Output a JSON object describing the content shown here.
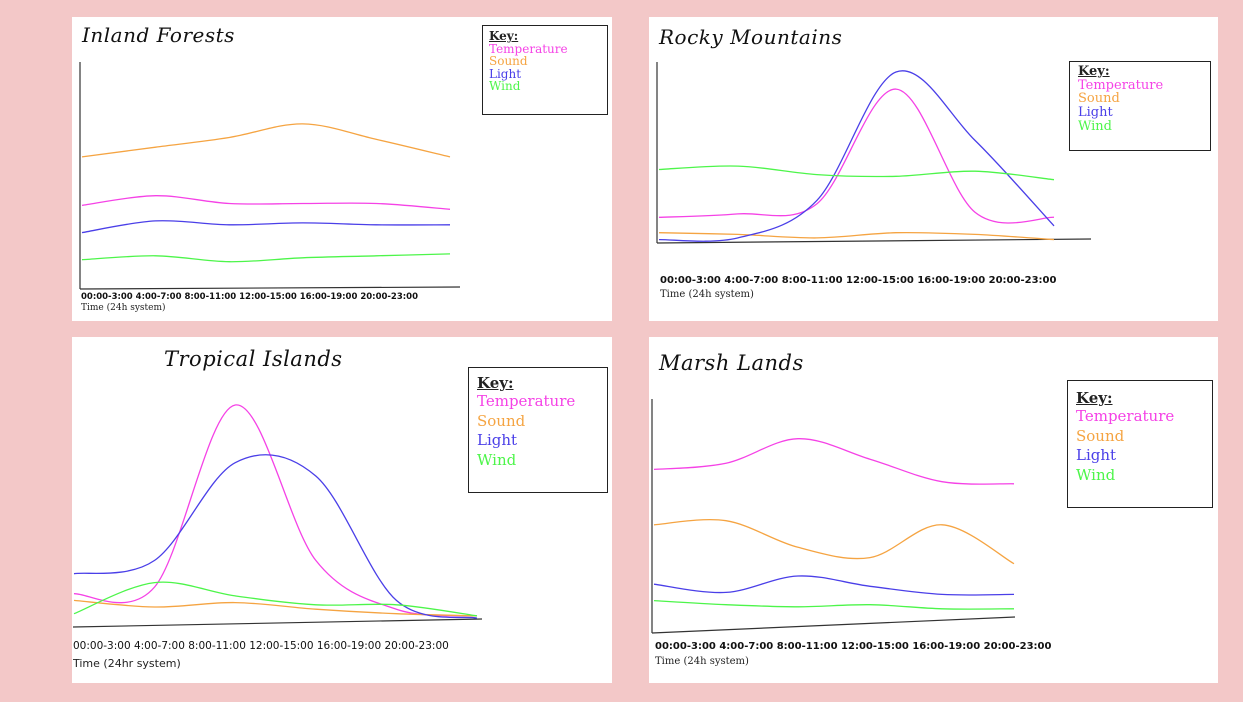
{
  "colors": {
    "temperature": "#f542e6",
    "sound": "#f5a442",
    "light": "#4a3fe8",
    "wind": "#4df54a",
    "axis": "#333333",
    "background": "#f3c8c8"
  },
  "legend": {
    "header": "Key:",
    "items": [
      "Temperature",
      "Sound",
      "Light",
      "Wind"
    ]
  },
  "chart_data": [
    {
      "type": "line",
      "title": "Inland Forests",
      "categories": [
        "00:00-3:00",
        "4:00-7:00",
        "8:00-11:00",
        "12:00-15:00",
        "16:00-19:00",
        "20:00-23:00"
      ],
      "tick_text": "00:00-3:00  4:00-7:00  8:00-11:00  12:00-15:00  16:00-19:00  20:00-23:00",
      "xlabel": "Time (24h system)",
      "ylabel": "",
      "series": [
        {
          "name": "Sound",
          "color_key": "sound",
          "values": [
            6.5,
            7,
            7.5,
            8.2,
            7.4,
            6.5
          ]
        },
        {
          "name": "Temperature",
          "color_key": "temperature",
          "values": [
            4,
            4.5,
            4.1,
            4.1,
            4.1,
            3.8
          ]
        },
        {
          "name": "Light",
          "color_key": "light",
          "values": [
            2.6,
            3.2,
            3,
            3.1,
            3,
            3
          ]
        },
        {
          "name": "Wind",
          "color_key": "wind",
          "values": [
            1.2,
            1.4,
            1.1,
            1.3,
            1.4,
            1.5
          ]
        }
      ]
    },
    {
      "type": "line",
      "title": "Rocky Mountains",
      "categories": [
        "00:00-3:00",
        "4:00-7:00",
        "8:00-11:00",
        "12:00-15:00",
        "16:00-19:00",
        "20:00-23:00"
      ],
      "tick_text": "00:00-3:00  4:00-7:00  8:00-11:00  12:00-15:00  16:00-19:00  20:00-23:00",
      "xlabel": "Time (24h system)",
      "ylabel": "",
      "series": [
        {
          "name": "Temperature",
          "color_key": "temperature",
          "values": [
            1.5,
            1.7,
            2.3,
            9,
            1.8,
            1.5
          ]
        },
        {
          "name": "Sound",
          "color_key": "sound",
          "values": [
            0.6,
            0.5,
            0.3,
            0.6,
            0.5,
            0.2
          ]
        },
        {
          "name": "Light",
          "color_key": "light",
          "values": [
            0.2,
            0.3,
            2.5,
            10,
            6,
            1
          ]
        },
        {
          "name": "Wind",
          "color_key": "wind",
          "values": [
            4.3,
            4.5,
            4,
            3.9,
            4.2,
            3.7
          ]
        }
      ]
    },
    {
      "type": "line",
      "title": "Tropical Islands",
      "categories": [
        "00:00-3:00",
        "4:00-7:00",
        "8:00-11:00",
        "12:00-15:00",
        "16:00-19:00",
        "20:00-23:00"
      ],
      "tick_text": "00:00-3:00  4:00-7:00  8:00-11:00  12:00-15:00  16:00-19:00  20:00-23:00",
      "xlabel": "Time (24hr system)",
      "ylabel": "",
      "series": [
        {
          "name": "Temperature",
          "color_key": "temperature",
          "values": [
            1.5,
            1.8,
            10,
            3,
            0.8,
            0.5
          ]
        },
        {
          "name": "Sound",
          "color_key": "sound",
          "values": [
            1.2,
            0.9,
            1.1,
            0.8,
            0.6,
            0.5
          ]
        },
        {
          "name": "Light",
          "color_key": "light",
          "values": [
            2.4,
            3,
            7.4,
            6.8,
            1.2,
            0.4
          ]
        },
        {
          "name": "Wind",
          "color_key": "wind",
          "values": [
            0.6,
            2,
            1.4,
            1,
            1,
            0.5
          ]
        }
      ]
    },
    {
      "type": "line",
      "title": "Marsh Lands",
      "categories": [
        "00:00-3:00",
        "4:00-7:00",
        "8:00-11:00",
        "12:00-15:00",
        "16:00-19:00",
        "20:00-23:00"
      ],
      "tick_text": "00:00-3:00  4:00-7:00  8:00-11:00  12:00-15:00  16:00-19:00  20:00-23:00",
      "xlabel": "Time (24h system)",
      "ylabel": "",
      "series": [
        {
          "name": "Temperature",
          "color_key": "temperature",
          "values": [
            7.2,
            7.5,
            8.7,
            7.7,
            6.6,
            6.5
          ]
        },
        {
          "name": "Sound",
          "color_key": "sound",
          "values": [
            4.5,
            4.7,
            3.4,
            2.9,
            4.5,
            2.6
          ]
        },
        {
          "name": "Light",
          "color_key": "light",
          "values": [
            1.6,
            1.2,
            2,
            1.5,
            1.1,
            1.1
          ]
        },
        {
          "name": "Wind",
          "color_key": "wind",
          "values": [
            0.8,
            0.6,
            0.5,
            0.6,
            0.4,
            0.4
          ]
        }
      ]
    }
  ]
}
